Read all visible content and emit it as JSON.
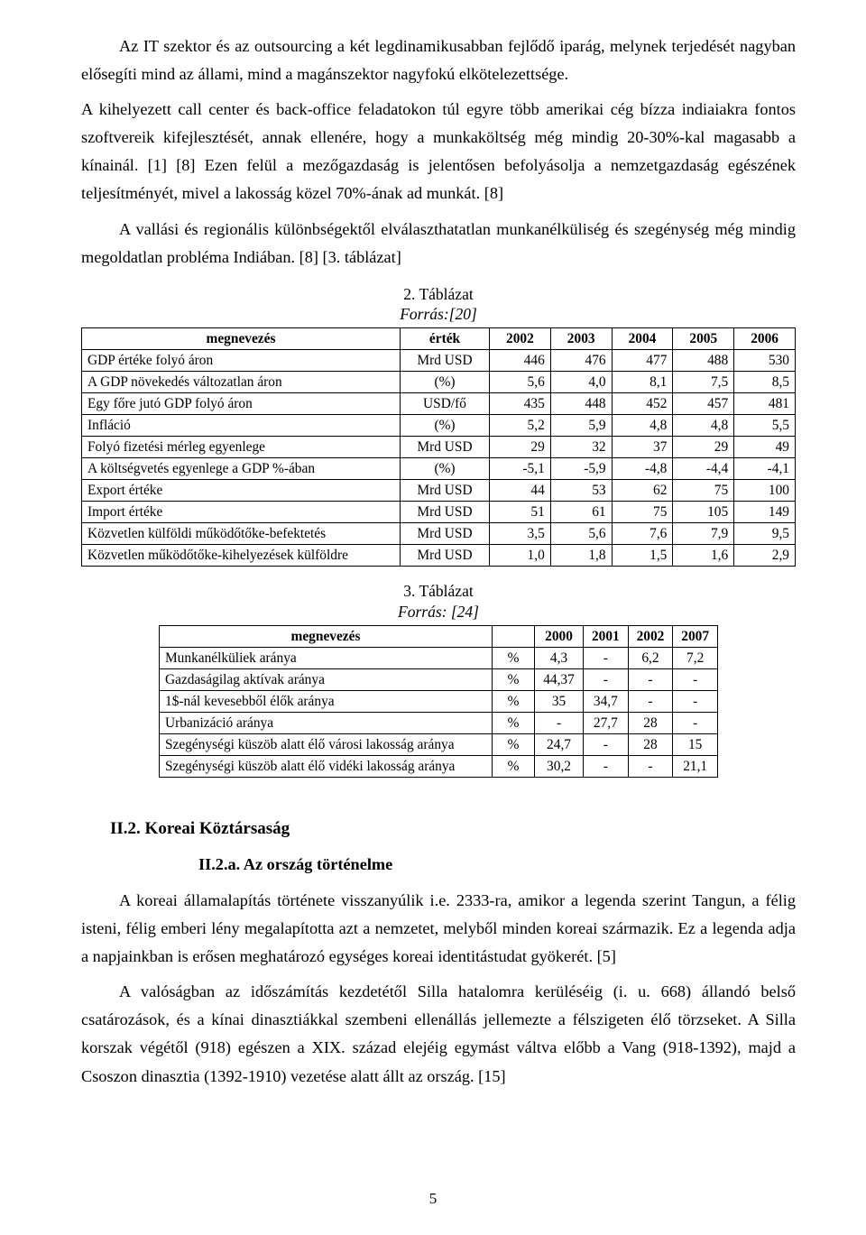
{
  "paragraphs": {
    "p1": "Az IT szektor és az outsourcing a két legdinamikusabban fejlődő iparág, melynek terjedését nagyban elősegíti mind az állami, mind a magánszektor nagyfokú elkötelezettsége.",
    "p2": "A kihelyezett call center és back-office feladatokon túl egyre több amerikai cég bízza indiaiakra fontos szoftvereik kifejlesztését, annak ellenére, hogy a munkaköltség még mindig 20-30%-kal magasabb a kínainál. [1] [8] Ezen felül a mezőgazdaság is jelentősen befolyásolja a nemzetgazdaság egészének teljesítményét, mivel a lakosság közel 70%-ának ad munkát. [8]",
    "p3": "A vallási és regionális különbségektől elválaszthatatlan munkanélküliség és szegénység még mindig megoldatlan probléma Indiában. [8] [3. táblázat]",
    "p4": "A koreai államalapítás története visszanyúlik i.e. 2333-ra, amikor a legenda szerint Tangun, a félig isteni, félig emberi lény megalapította azt a nemzetet, melyből minden koreai származik. Ez a legenda adja a napjainkban is erősen meghatározó egységes koreai identitástudat gyökerét. [5]",
    "p5": "A valóságban az időszámítás kezdetétől Silla hatalomra kerüléséig (i. u. 668) állandó belső csatározások, és a kínai dinasztiákkal szembeni ellenállás jellemezte a félszigeten élő törzseket. A Silla korszak végétől (918) egészen a XIX. század elejéig egymást váltva előbb a Vang (918-1392), majd a Csoszon dinasztia (1392-1910) vezetése alatt állt az ország.  [15]"
  },
  "headings": {
    "h2": "II.2.  Koreai Köztársaság",
    "h3": "II.2.a.    Az ország történelme"
  },
  "table1": {
    "caption": "2. Táblázat",
    "source": "Forrás:[20]",
    "columns": [
      "megnevezés",
      "érték",
      "2002",
      "2003",
      "2004",
      "2005",
      "2006"
    ],
    "rows": [
      [
        "GDP értéke folyó áron",
        "Mrd USD",
        "446",
        "476",
        "477",
        "488",
        "530"
      ],
      [
        "A GDP növekedés változatlan áron",
        "(%)",
        "5,6",
        "4,0",
        "8,1",
        "7,5",
        "8,5"
      ],
      [
        "Egy főre jutó GDP folyó áron",
        "USD/fő",
        "435",
        "448",
        "452",
        "457",
        "481"
      ],
      [
        "Infláció",
        "(%)",
        "5,2",
        "5,9",
        "4,8",
        "4,8",
        "5,5"
      ],
      [
        "Folyó fizetési mérleg egyenlege",
        "Mrd USD",
        "29",
        "32",
        "37",
        "29",
        "49"
      ],
      [
        "A költségvetés egyenlege a GDP %-ában",
        "(%)",
        "-5,1",
        "-5,9",
        "-4,8",
        "-4,4",
        "-4,1"
      ],
      [
        "Export értéke",
        "Mrd USD",
        "44",
        "53",
        "62",
        "75",
        "100"
      ],
      [
        "Import értéke",
        "Mrd USD",
        "51",
        "61",
        "75",
        "105",
        "149"
      ],
      [
        "Közvetlen külföldi működőtőke-befektetés",
        "Mrd USD",
        "3,5",
        "5,6",
        "7,6",
        "7,9",
        "9,5"
      ],
      [
        "Közvetlen működőtőke-kihelyezések külföldre",
        "Mrd USD",
        "1,0",
        "1,8",
        "1,5",
        "1,6",
        "2,9"
      ]
    ]
  },
  "table2": {
    "caption": "3. Táblázat",
    "source": "Forrás: [24]",
    "columns": [
      "megnevezés",
      "",
      "2000",
      "2001",
      "2002",
      "2007"
    ],
    "rows": [
      [
        "Munkanélküliek aránya",
        "%",
        "4,3",
        "-",
        "6,2",
        "7,2"
      ],
      [
        "Gazdaságilag aktívak aránya",
        "%",
        "44,37",
        "-",
        "-",
        "-"
      ],
      [
        "1$-nál kevesebből élők aránya",
        "%",
        "35",
        "34,7",
        "-",
        "-"
      ],
      [
        "Urbanizáció aránya",
        "%",
        "-",
        "27,7",
        "28",
        "-"
      ],
      [
        "Szegénységi küszöb alatt élő városi lakosság aránya",
        "%",
        "24,7",
        "-",
        "28",
        "15"
      ],
      [
        "Szegénységi küszöb alatt élő vidéki lakosság aránya",
        "%",
        "30,2",
        "-",
        "-",
        "21,1"
      ]
    ]
  },
  "page_number": "5"
}
